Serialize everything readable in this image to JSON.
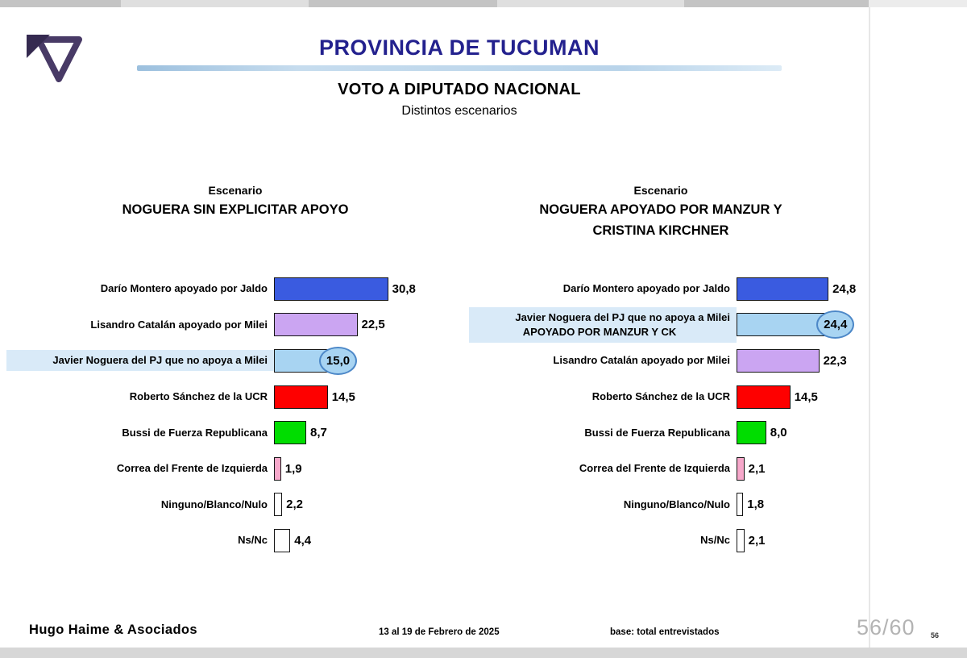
{
  "header": {
    "title": "PROVINCIA DE TUCUMAN",
    "subtitle": "VOTO A DIPUTADO NACIONAL",
    "tagline": "Distintos escenarios"
  },
  "footer": {
    "company": "Hugo Haime & Asociados",
    "date_range": "13 al 19 de Febrero de 2025",
    "base_note": "base: total entrevistados",
    "page_indicator": "56/60",
    "slide_number": "56"
  },
  "colors": {
    "title": "#23218e",
    "highlight_bg": "#d9eaf8",
    "circle_fill": "#a8d4f2",
    "circle_border": "#4d88c8",
    "bar_blue": "#3a5be0",
    "bar_purple": "#cba5f2",
    "bar_lightblue": "#a8d4f2",
    "bar_red": "#fe0000",
    "bar_green": "#00dd00",
    "bar_pink": "#f7a8cb",
    "bar_white": "#ffffff"
  },
  "chart_data": [
    {
      "type": "bar",
      "orientation": "horizontal",
      "scenario_label": "Escenario",
      "title_lines": [
        "NOGUERA SIN EXPLICITAR APOYO"
      ],
      "xlim": [
        0,
        33
      ],
      "grid": false,
      "rows": [
        {
          "label_lines": [
            "Darío Montero apoyado por Jaldo"
          ],
          "value": 30.8,
          "value_label": "30,8",
          "color": "#3a5be0",
          "highlight": false
        },
        {
          "label_lines": [
            "Lisandro Catalán apoyado por Milei"
          ],
          "value": 22.5,
          "value_label": "22,5",
          "color": "#cba5f2",
          "highlight": false
        },
        {
          "label_lines": [
            "Javier Noguera del PJ que no apoya a Milei"
          ],
          "value": 15.0,
          "value_label": "15,0",
          "color": "#a8d4f2",
          "highlight": true
        },
        {
          "label_lines": [
            "Roberto Sánchez de la UCR"
          ],
          "value": 14.5,
          "value_label": "14,5",
          "color": "#fe0000",
          "highlight": false
        },
        {
          "label_lines": [
            "Bussi de Fuerza Republicana"
          ],
          "value": 8.7,
          "value_label": "8,7",
          "color": "#00dd00",
          "highlight": false
        },
        {
          "label_lines": [
            "Correa del Frente de Izquierda"
          ],
          "value": 1.9,
          "value_label": "1,9",
          "color": "#f7a8cb",
          "highlight": false
        },
        {
          "label_lines": [
            "Ninguno/Blanco/Nulo"
          ],
          "value": 2.2,
          "value_label": "2,2",
          "color": "#ffffff",
          "highlight": false
        },
        {
          "label_lines": [
            "Ns/Nc"
          ],
          "value": 4.4,
          "value_label": "4,4",
          "color": "#ffffff",
          "highlight": false
        }
      ]
    },
    {
      "type": "bar",
      "orientation": "horizontal",
      "scenario_label": "Escenario",
      "title_lines": [
        "NOGUERA APOYADO POR MANZUR Y",
        "CRISTINA KIRCHNER"
      ],
      "xlim": [
        0,
        33
      ],
      "grid": false,
      "rows": [
        {
          "label_lines": [
            "Darío Montero apoyado por Jaldo"
          ],
          "value": 24.8,
          "value_label": "24,8",
          "color": "#3a5be0",
          "highlight": false
        },
        {
          "label_lines": [
            "Javier Noguera del PJ que no apoya a Milei",
            "APOYADO POR  MANZUR Y CK"
          ],
          "value": 24.4,
          "value_label": "24,4",
          "color": "#a8d4f2",
          "highlight": true
        },
        {
          "label_lines": [
            "Lisandro Catalán apoyado por Milei"
          ],
          "value": 22.3,
          "value_label": "22,3",
          "color": "#cba5f2",
          "highlight": false
        },
        {
          "label_lines": [
            "Roberto Sánchez de la UCR"
          ],
          "value": 14.5,
          "value_label": "14,5",
          "color": "#fe0000",
          "highlight": false
        },
        {
          "label_lines": [
            "Bussi de Fuerza Republicana"
          ],
          "value": 8.0,
          "value_label": "8,0",
          "color": "#00dd00",
          "highlight": false
        },
        {
          "label_lines": [
            "Correa del Frente de Izquierda"
          ],
          "value": 2.1,
          "value_label": "2,1",
          "color": "#f7a8cb",
          "highlight": false
        },
        {
          "label_lines": [
            "Ninguno/Blanco/Nulo"
          ],
          "value": 1.8,
          "value_label": "1,8",
          "color": "#ffffff",
          "highlight": false
        },
        {
          "label_lines": [
            "Ns/Nc"
          ],
          "value": 2.1,
          "value_label": "2,1",
          "color": "#ffffff",
          "highlight": false
        }
      ]
    }
  ]
}
